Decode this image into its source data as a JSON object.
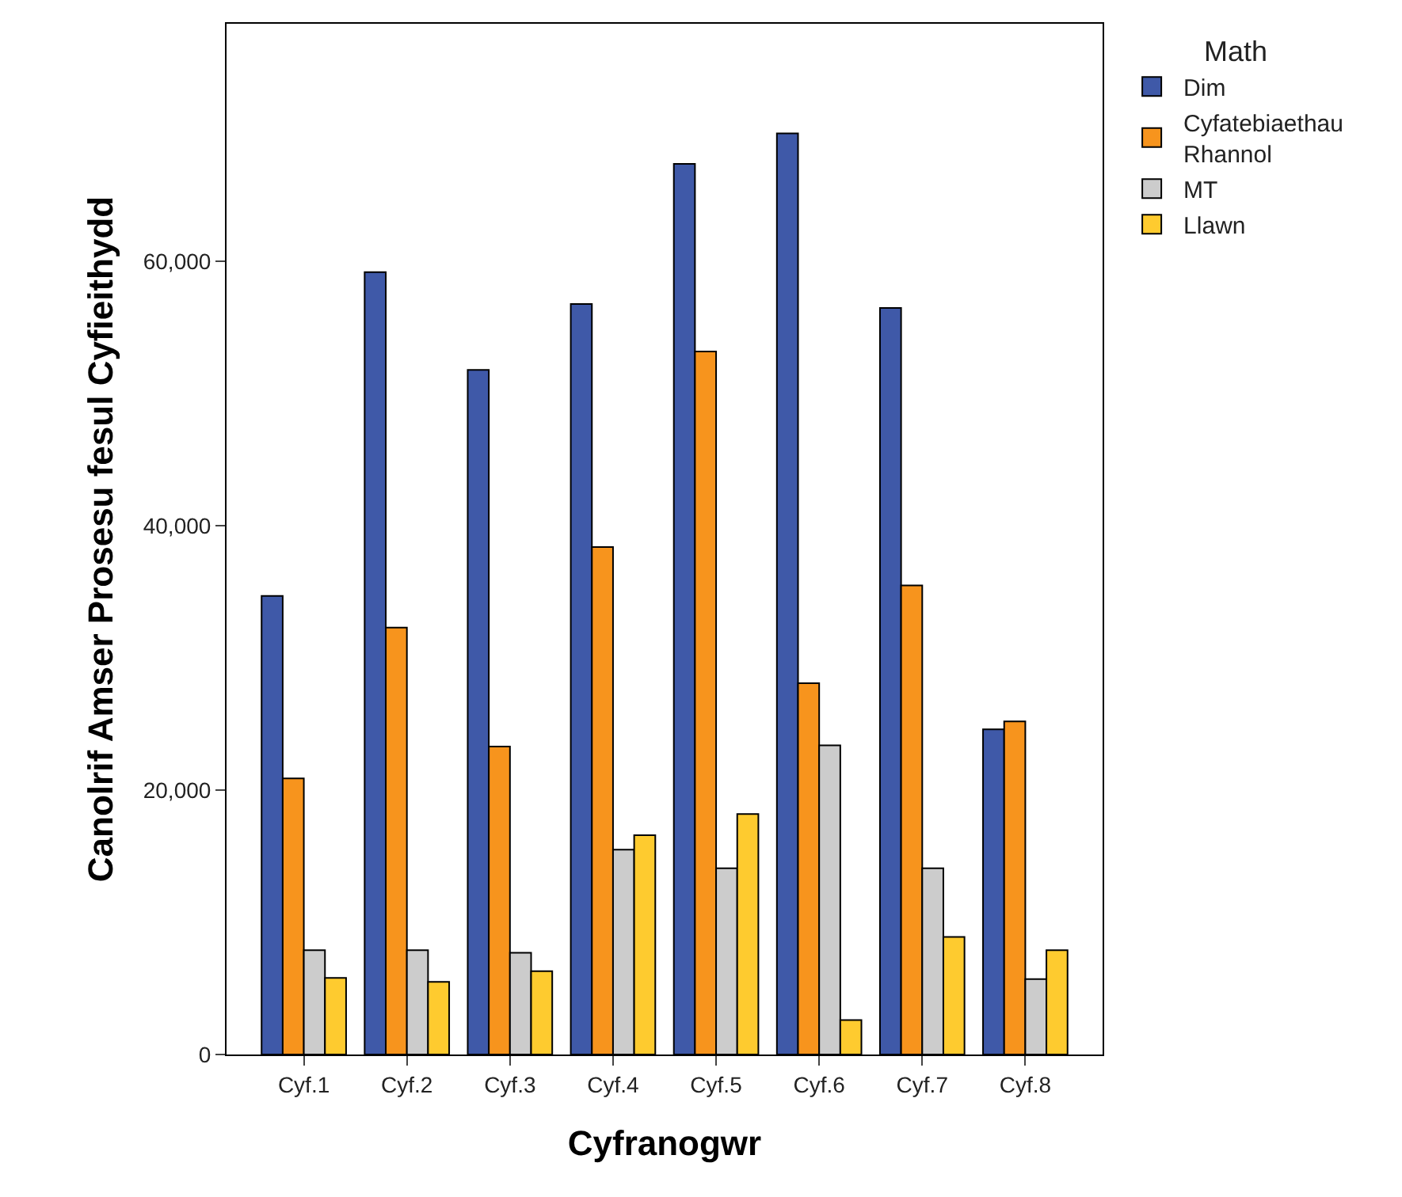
{
  "chart_data": {
    "type": "bar",
    "xlabel": "Cyfranogwr",
    "ylabel": "Canolrif Amser Prosesu fesul Cyfieithydd",
    "legend_title": "Math",
    "legend": "right",
    "grid": false,
    "categories": [
      "Cyf.1",
      "Cyf.2",
      "Cyf.3",
      "Cyf.4",
      "Cyf.5",
      "Cyf.6",
      "Cyf.7",
      "Cyf.8"
    ],
    "series": [
      {
        "name": "Dim",
        "color": "#3f59a8",
        "values": [
          34700,
          59200,
          51800,
          56800,
          67400,
          69700,
          56500,
          24600
        ]
      },
      {
        "name": "Cyfatebiaethau Rhannol",
        "color": "#f7941d",
        "values": [
          20900,
          32300,
          23300,
          38400,
          53200,
          28100,
          35500,
          25200
        ]
      },
      {
        "name": "MT",
        "color": "#cccccc",
        "values": [
          7900,
          7900,
          7700,
          15500,
          14100,
          23400,
          14100,
          5700
        ]
      },
      {
        "name": "Llawn",
        "color": "#fecb2f",
        "values": [
          5800,
          5500,
          6300,
          16600,
          18200,
          2600,
          8900,
          7900
        ]
      }
    ],
    "ylim": [
      0,
      78000
    ],
    "yticks": [
      {
        "value": 0,
        "label": "0"
      },
      {
        "value": 20000,
        "label": "20,000"
      },
      {
        "value": 40000,
        "label": "40,000"
      },
      {
        "value": 60000,
        "label": "60,000"
      }
    ]
  }
}
